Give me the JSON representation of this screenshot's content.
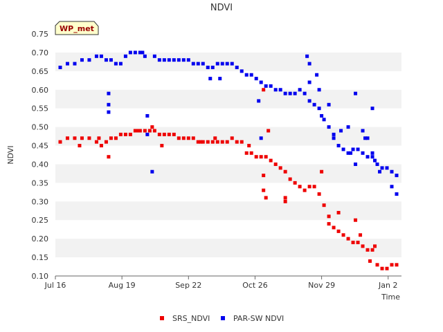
{
  "chart_data": {
    "type": "scatter",
    "title": "NDVI",
    "xlabel": "Time",
    "ylabel": "NDVI",
    "badge": "WP_met",
    "ylim": [
      0.1,
      0.75
    ],
    "xlim": [
      0,
      143
    ],
    "y_ticks": [
      "0.75",
      "0.70",
      "0.65",
      "0.60",
      "0.55",
      "0.50",
      "0.45",
      "0.40",
      "0.35",
      "0.30",
      "0.25",
      "0.20",
      "0.15",
      "0.10"
    ],
    "x_ticks": [
      {
        "label": "Jul 16",
        "x": 0
      },
      {
        "label": "Aug 19",
        "x": 27.5
      },
      {
        "label": "Sep 22",
        "x": 55
      },
      {
        "label": "Oct 26",
        "x": 82.5
      },
      {
        "label": "Nov 29",
        "x": 110
      },
      {
        "label": "Jan 2",
        "x": 137.5
      }
    ],
    "colors": {
      "band": "#f2f2f2",
      "axis": "#666666",
      "title": "#333333",
      "badge_fill": "#ffffcc",
      "badge_text": "#990000"
    },
    "series": [
      {
        "name": "SRS_NDVI",
        "color": "#ee0000",
        "points": [
          [
            2,
            0.46
          ],
          [
            5,
            0.47
          ],
          [
            8,
            0.47
          ],
          [
            11,
            0.47
          ],
          [
            14,
            0.47
          ],
          [
            17,
            0.46
          ],
          [
            19,
            0.45
          ],
          [
            21,
            0.46
          ],
          [
            23,
            0.47
          ],
          [
            25,
            0.47
          ],
          [
            27,
            0.48
          ],
          [
            29,
            0.48
          ],
          [
            31,
            0.48
          ],
          [
            33,
            0.49
          ],
          [
            35,
            0.49
          ],
          [
            37,
            0.49
          ],
          [
            39,
            0.49
          ],
          [
            41,
            0.49
          ],
          [
            43,
            0.48
          ],
          [
            45,
            0.48
          ],
          [
            47,
            0.48
          ],
          [
            49,
            0.48
          ],
          [
            51,
            0.47
          ],
          [
            53,
            0.47
          ],
          [
            55,
            0.47
          ],
          [
            57,
            0.47
          ],
          [
            59,
            0.46
          ],
          [
            61,
            0.46
          ],
          [
            63,
            0.46
          ],
          [
            65,
            0.46
          ],
          [
            67,
            0.46
          ],
          [
            69,
            0.46
          ],
          [
            71,
            0.46
          ],
          [
            73,
            0.47
          ],
          [
            75,
            0.46
          ],
          [
            77,
            0.46
          ],
          [
            79,
            0.43
          ],
          [
            81,
            0.43
          ],
          [
            83,
            0.42
          ],
          [
            85,
            0.42
          ],
          [
            87,
            0.42
          ],
          [
            89,
            0.41
          ],
          [
            91,
            0.4
          ],
          [
            93,
            0.39
          ],
          [
            95,
            0.38
          ],
          [
            97,
            0.36
          ],
          [
            99,
            0.35
          ],
          [
            101,
            0.34
          ],
          [
            103,
            0.33
          ],
          [
            105,
            0.34
          ],
          [
            107,
            0.34
          ],
          [
            109,
            0.32
          ],
          [
            111,
            0.29
          ],
          [
            113,
            0.26
          ],
          [
            115,
            0.23
          ],
          [
            117,
            0.22
          ],
          [
            119,
            0.21
          ],
          [
            121,
            0.2
          ],
          [
            123,
            0.19
          ],
          [
            125,
            0.19
          ],
          [
            127,
            0.18
          ],
          [
            129,
            0.17
          ],
          [
            131,
            0.17
          ],
          [
            133,
            0.13
          ],
          [
            135,
            0.12
          ],
          [
            137,
            0.12
          ],
          [
            139,
            0.13
          ],
          [
            141,
            0.13
          ],
          [
            10,
            0.45
          ],
          [
            18,
            0.47
          ],
          [
            22,
            0.42
          ],
          [
            34,
            0.49
          ],
          [
            40,
            0.5
          ],
          [
            44,
            0.45
          ],
          [
            60,
            0.46
          ],
          [
            66,
            0.47
          ],
          [
            80,
            0.45
          ],
          [
            86,
            0.33
          ],
          [
            87,
            0.31
          ],
          [
            86,
            0.37
          ],
          [
            88,
            0.49
          ],
          [
            86,
            0.6
          ],
          [
            95,
            0.31
          ],
          [
            95,
            0.3
          ],
          [
            110,
            0.38
          ],
          [
            113,
            0.24
          ],
          [
            117,
            0.27
          ],
          [
            124,
            0.25
          ],
          [
            126,
            0.21
          ],
          [
            130,
            0.14
          ],
          [
            132,
            0.18
          ]
        ]
      },
      {
        "name": "PAR-SW NDVI",
        "color": "#0000ee",
        "points": [
          [
            2,
            0.66
          ],
          [
            5,
            0.67
          ],
          [
            8,
            0.67
          ],
          [
            11,
            0.68
          ],
          [
            14,
            0.68
          ],
          [
            17,
            0.69
          ],
          [
            19,
            0.69
          ],
          [
            21,
            0.68
          ],
          [
            23,
            0.68
          ],
          [
            25,
            0.67
          ],
          [
            27,
            0.67
          ],
          [
            29,
            0.69
          ],
          [
            31,
            0.7
          ],
          [
            33,
            0.7
          ],
          [
            35,
            0.7
          ],
          [
            37,
            0.69
          ],
          [
            41,
            0.69
          ],
          [
            43,
            0.68
          ],
          [
            45,
            0.68
          ],
          [
            47,
            0.68
          ],
          [
            49,
            0.68
          ],
          [
            51,
            0.68
          ],
          [
            53,
            0.68
          ],
          [
            55,
            0.68
          ],
          [
            57,
            0.67
          ],
          [
            59,
            0.67
          ],
          [
            61,
            0.67
          ],
          [
            63,
            0.66
          ],
          [
            65,
            0.66
          ],
          [
            67,
            0.67
          ],
          [
            69,
            0.67
          ],
          [
            71,
            0.67
          ],
          [
            73,
            0.67
          ],
          [
            75,
            0.66
          ],
          [
            77,
            0.65
          ],
          [
            79,
            0.64
          ],
          [
            81,
            0.64
          ],
          [
            83,
            0.63
          ],
          [
            85,
            0.62
          ],
          [
            87,
            0.61
          ],
          [
            89,
            0.61
          ],
          [
            91,
            0.6
          ],
          [
            93,
            0.6
          ],
          [
            95,
            0.59
          ],
          [
            97,
            0.59
          ],
          [
            99,
            0.59
          ],
          [
            101,
            0.6
          ],
          [
            103,
            0.59
          ],
          [
            105,
            0.57
          ],
          [
            107,
            0.56
          ],
          [
            109,
            0.55
          ],
          [
            111,
            0.52
          ],
          [
            113,
            0.5
          ],
          [
            115,
            0.47
          ],
          [
            117,
            0.45
          ],
          [
            119,
            0.44
          ],
          [
            121,
            0.43
          ],
          [
            123,
            0.44
          ],
          [
            125,
            0.44
          ],
          [
            127,
            0.43
          ],
          [
            129,
            0.42
          ],
          [
            131,
            0.42
          ],
          [
            133,
            0.4
          ],
          [
            135,
            0.39
          ],
          [
            137,
            0.39
          ],
          [
            139,
            0.38
          ],
          [
            141,
            0.37
          ],
          [
            22,
            0.59
          ],
          [
            22,
            0.56
          ],
          [
            22,
            0.54
          ],
          [
            38,
            0.53
          ],
          [
            38,
            0.48
          ],
          [
            40,
            0.38
          ],
          [
            36,
            0.7
          ],
          [
            64,
            0.63
          ],
          [
            68,
            0.63
          ],
          [
            84,
            0.57
          ],
          [
            85,
            0.47
          ],
          [
            104,
            0.69
          ],
          [
            105,
            0.67
          ],
          [
            105,
            0.62
          ],
          [
            108,
            0.64
          ],
          [
            109,
            0.6
          ],
          [
            110,
            0.53
          ],
          [
            113,
            0.56
          ],
          [
            115,
            0.48
          ],
          [
            118,
            0.49
          ],
          [
            121,
            0.5
          ],
          [
            122,
            0.43
          ],
          [
            124,
            0.59
          ],
          [
            124,
            0.4
          ],
          [
            127,
            0.49
          ],
          [
            128,
            0.47
          ],
          [
            129,
            0.47
          ],
          [
            131,
            0.55
          ],
          [
            131,
            0.43
          ],
          [
            132,
            0.41
          ],
          [
            134,
            0.38
          ],
          [
            139,
            0.34
          ],
          [
            141,
            0.32
          ]
        ]
      }
    ]
  }
}
